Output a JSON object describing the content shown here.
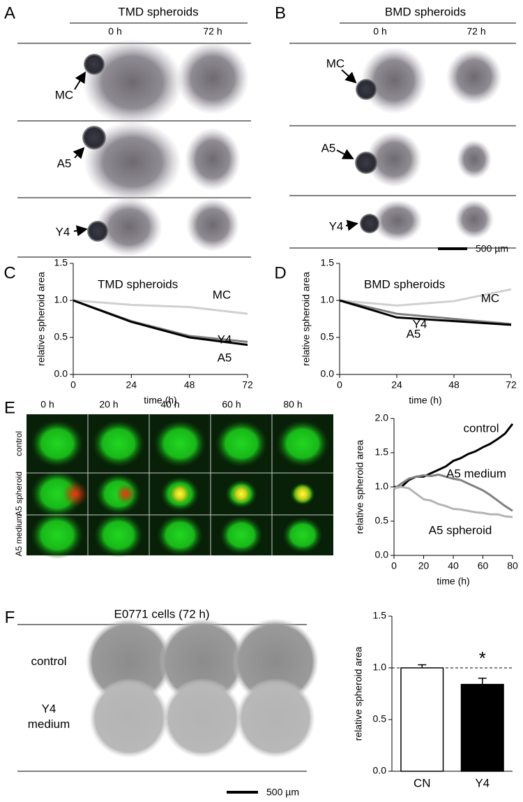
{
  "panels": {
    "A": {
      "label": "A",
      "title": "TMD spheroids",
      "columns": [
        "0 h",
        "72 h"
      ],
      "rows": [
        "MC",
        "A5",
        "Y4"
      ]
    },
    "B": {
      "label": "B",
      "title": "BMD spheroids",
      "columns": [
        "0 h",
        "72 h"
      ],
      "rows": [
        "MC",
        "A5",
        "Y4"
      ],
      "scale_bar": "500 µm"
    },
    "E": {
      "label": "E",
      "columns": [
        "0 h",
        "20 h",
        "40 h",
        "60 h",
        "80 h"
      ],
      "rows": [
        "control",
        "A5 spheroid",
        "A5 medium"
      ]
    },
    "F": {
      "label": "F",
      "title": "E0771 cells (72 h)",
      "rows": [
        "control",
        "Y4 medium"
      ],
      "scale_bar": "500 µm"
    }
  },
  "chart_data": [
    {
      "type": "line",
      "panel_label": "C",
      "title": "TMD spheroids",
      "x_label": "time (h)",
      "y_label": "relative spheroid area",
      "x": [
        0,
        24,
        48,
        72
      ],
      "xlim": [
        0,
        72
      ],
      "xticks": [
        0,
        24,
        48,
        72
      ],
      "ylim": [
        0,
        1.5
      ],
      "yticks": [
        {
          "value": 0,
          "label": "0.0"
        },
        0.5,
        {
          "value": 1,
          "label": "1.0"
        },
        1.5
      ],
      "series": [
        {
          "name": "MC",
          "color": "#d0d0d0",
          "values": [
            1,
            0.94,
            0.91,
            0.82
          ]
        },
        {
          "name": "Y4",
          "color": "#808080",
          "values": [
            1,
            0.72,
            0.52,
            0.44
          ]
        },
        {
          "name": "A5",
          "color": "#000000",
          "values": [
            1,
            0.71,
            0.5,
            0.4
          ]
        }
      ]
    },
    {
      "type": "line",
      "panel_label": "D",
      "title": "BMD spheroids",
      "x_label": "time (h)",
      "y_label": "relative spheroid area",
      "x": [
        0,
        24,
        48,
        72
      ],
      "xlim": [
        0,
        72
      ],
      "xticks": [
        0,
        24,
        48,
        72
      ],
      "ylim": [
        0,
        1.5
      ],
      "yticks": [
        {
          "value": 0,
          "label": "0.0"
        },
        0.5,
        {
          "value": 1,
          "label": "1.0"
        },
        1.5
      ],
      "series": [
        {
          "name": "MC",
          "color": "#d0d0d0",
          "values": [
            1,
            0.93,
            0.99,
            1.15
          ]
        },
        {
          "name": "Y4",
          "color": "#808080",
          "values": [
            1,
            0.82,
            0.75,
            0.68
          ]
        },
        {
          "name": "A5",
          "color": "#000000",
          "values": [
            1,
            0.77,
            0.72,
            0.67
          ]
        }
      ]
    },
    {
      "type": "line",
      "x_label": "time (h)",
      "y_label": "relative spheroid area",
      "x": [
        0,
        5,
        10,
        15,
        20,
        25,
        30,
        35,
        40,
        45,
        50,
        55,
        60,
        65,
        70,
        75,
        80
      ],
      "xlim": [
        0,
        80
      ],
      "xticks": [
        0,
        20,
        40,
        60,
        80
      ],
      "ylim": [
        0,
        2
      ],
      "yticks": [
        {
          "value": 0,
          "label": "0.0"
        },
        0.5,
        {
          "value": 1,
          "label": "1.0"
        },
        1.5,
        {
          "value": 2,
          "label": "2.0"
        }
      ],
      "series": [
        {
          "name": "control",
          "color": "#000000",
          "values": [
            1.0,
            1.0,
            1.1,
            1.15,
            1.15,
            1.2,
            1.25,
            1.3,
            1.38,
            1.42,
            1.48,
            1.52,
            1.58,
            1.63,
            1.7,
            1.78,
            1.92
          ]
        },
        {
          "name": "A5 medium",
          "color": "#808080",
          "values": [
            0.97,
            1.05,
            1.12,
            1.15,
            1.17,
            1.16,
            1.18,
            1.15,
            1.12,
            1.1,
            1.05,
            1.0,
            0.95,
            0.88,
            0.8,
            0.72,
            0.65
          ]
        },
        {
          "name": "A5 spheroid",
          "color": "#b4b4b4",
          "values": [
            0.98,
            1.0,
            0.98,
            0.9,
            0.82,
            0.8,
            0.75,
            0.72,
            0.68,
            0.67,
            0.65,
            0.63,
            0.62,
            0.6,
            0.6,
            0.57,
            0.56
          ]
        }
      ]
    },
    {
      "type": "bar",
      "y_label": "relative spheroid area",
      "categories": [
        "CN",
        "Y4"
      ],
      "values": [
        1.0,
        0.84
      ],
      "errors": [
        0.03,
        0.06
      ],
      "colors": [
        "#ffffff",
        "#000000"
      ],
      "ylim": [
        0,
        1.5
      ],
      "yticks": [
        {
          "value": 0,
          "label": "0.0"
        },
        0.5,
        {
          "value": 1,
          "label": "1.0"
        },
        1.5
      ],
      "reference_line": 1,
      "annotation": "*"
    }
  ]
}
